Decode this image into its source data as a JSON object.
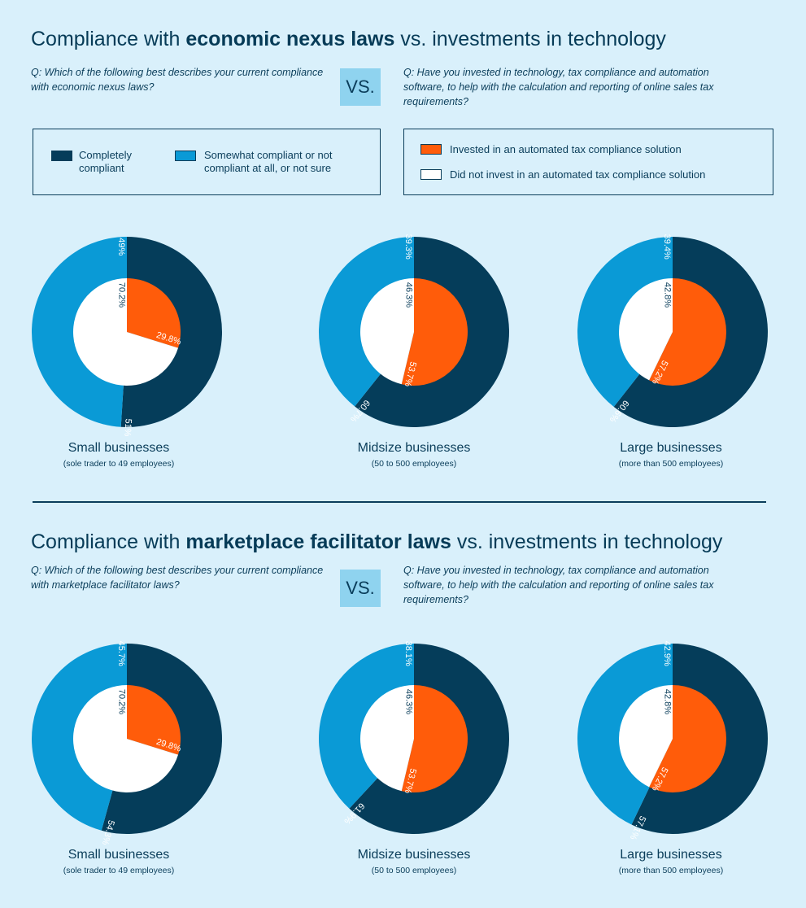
{
  "sections": [
    {
      "title_pre": "Compliance with ",
      "title_bold": "economic nexus laws",
      "title_post": " vs. investments in technology",
      "q_left": "Q: Which of the following best describes your current compliance with economic nexus laws?",
      "vs": "VS.",
      "q_right": "Q: Have you invested in technology, tax compliance and automation software, to help with the calculation and reporting of online sales tax requirements?"
    },
    {
      "title_pre": "Compliance with ",
      "title_bold": "marketplace facilitator laws",
      "title_post": " vs. investments in technology",
      "q_left": "Q: Which of the following best describes your current compliance with marketplace facilitator laws?",
      "vs": "VS.",
      "q_right": "Q: Have you invested in technology, tax compliance and automation software, to help with the calculation and reporting of online sales tax requirements?"
    }
  ],
  "legend": {
    "completely": "Completely compliant",
    "somewhat": "Somewhat compliant or not compliant at all, or not sure",
    "invested": "Invested in an automated tax compliance solution",
    "not_invested": "Did not invest in an automated tax compliance solution"
  },
  "colors": {
    "completely": "#053d5a",
    "somewhat": "#0a9ad6",
    "invested": "#ff5c0a",
    "not_invested": "#ffffff"
  },
  "captions": [
    {
      "name": "Small businesses",
      "sub": "(sole trader to 49 employees)"
    },
    {
      "name": "Midsize businesses",
      "sub": "(50 to 500 employees)"
    },
    {
      "name": "Large businesses",
      "sub": "(more than 500 employees)"
    }
  ],
  "chart_data": [
    {
      "type": "pie",
      "section": "economic nexus",
      "group": "Small businesses",
      "outer": {
        "Completely compliant": 51,
        "Somewhat compliant or not compliant at all, or not sure": 49
      },
      "inner": {
        "Invested in an automated tax compliance solution": 29.8,
        "Did not invest in an automated tax compliance solution": 70.2
      },
      "labels": {
        "completely": "51%",
        "somewhat": "49%",
        "invested": "29.8%",
        "not_invested": "70.2%"
      }
    },
    {
      "type": "pie",
      "section": "economic nexus",
      "group": "Midsize businesses",
      "outer": {
        "Completely compliant": 60.7,
        "Somewhat compliant or not compliant at all, or not sure": 39.3
      },
      "inner": {
        "Invested in an automated tax compliance solution": 53.7,
        "Did not invest in an automated tax compliance solution": 46.3
      },
      "labels": {
        "completely": "60.7%",
        "somewhat": "39.3%",
        "invested": "53.7%",
        "not_invested": "46.3%"
      }
    },
    {
      "type": "pie",
      "section": "economic nexus",
      "group": "Large businesses",
      "outer": {
        "Completely compliant": 60.6,
        "Somewhat compliant or not compliant at all, or not sure": 39.4
      },
      "inner": {
        "Invested in an automated tax compliance solution": 57.2,
        "Did not invest in an automated tax compliance solution": 42.8
      },
      "labels": {
        "completely": "60.6%",
        "somewhat": "39.4%",
        "invested": "57.2%",
        "not_invested": "42.8%"
      }
    },
    {
      "type": "pie",
      "section": "marketplace facilitator",
      "group": "Small businesses",
      "outer": {
        "Completely compliant": 54.3,
        "Somewhat compliant or not compliant at all, or not sure": 45.7
      },
      "inner": {
        "Invested in an automated tax compliance solution": 29.8,
        "Did not invest in an automated tax compliance solution": 70.2
      },
      "labels": {
        "completely": "54.3%",
        "somewhat": "45.7%",
        "invested": "29.8%",
        "not_invested": "70.2%"
      }
    },
    {
      "type": "pie",
      "section": "marketplace facilitator",
      "group": "Midsize businesses",
      "outer": {
        "Completely compliant": 61.9,
        "Somewhat compliant or not compliant at all, or not sure": 38.1
      },
      "inner": {
        "Invested in an automated tax compliance solution": 53.7,
        "Did not invest in an automated tax compliance solution": 46.3
      },
      "labels": {
        "completely": "61.9%",
        "somewhat": "38.1%",
        "invested": "53.7%",
        "not_invested": "46.3%"
      }
    },
    {
      "type": "pie",
      "section": "marketplace facilitator",
      "group": "Large businesses",
      "outer": {
        "Completely compliant": 57.1,
        "Somewhat compliant or not compliant at all, or not sure": 42.9
      },
      "inner": {
        "Invested in an automated tax compliance solution": 57.2,
        "Did not invest in an automated tax compliance solution": 42.8
      },
      "labels": {
        "completely": "57.1%",
        "somewhat": "42.9%",
        "invested": "57.2%",
        "not_invested": "42.8%"
      }
    }
  ]
}
